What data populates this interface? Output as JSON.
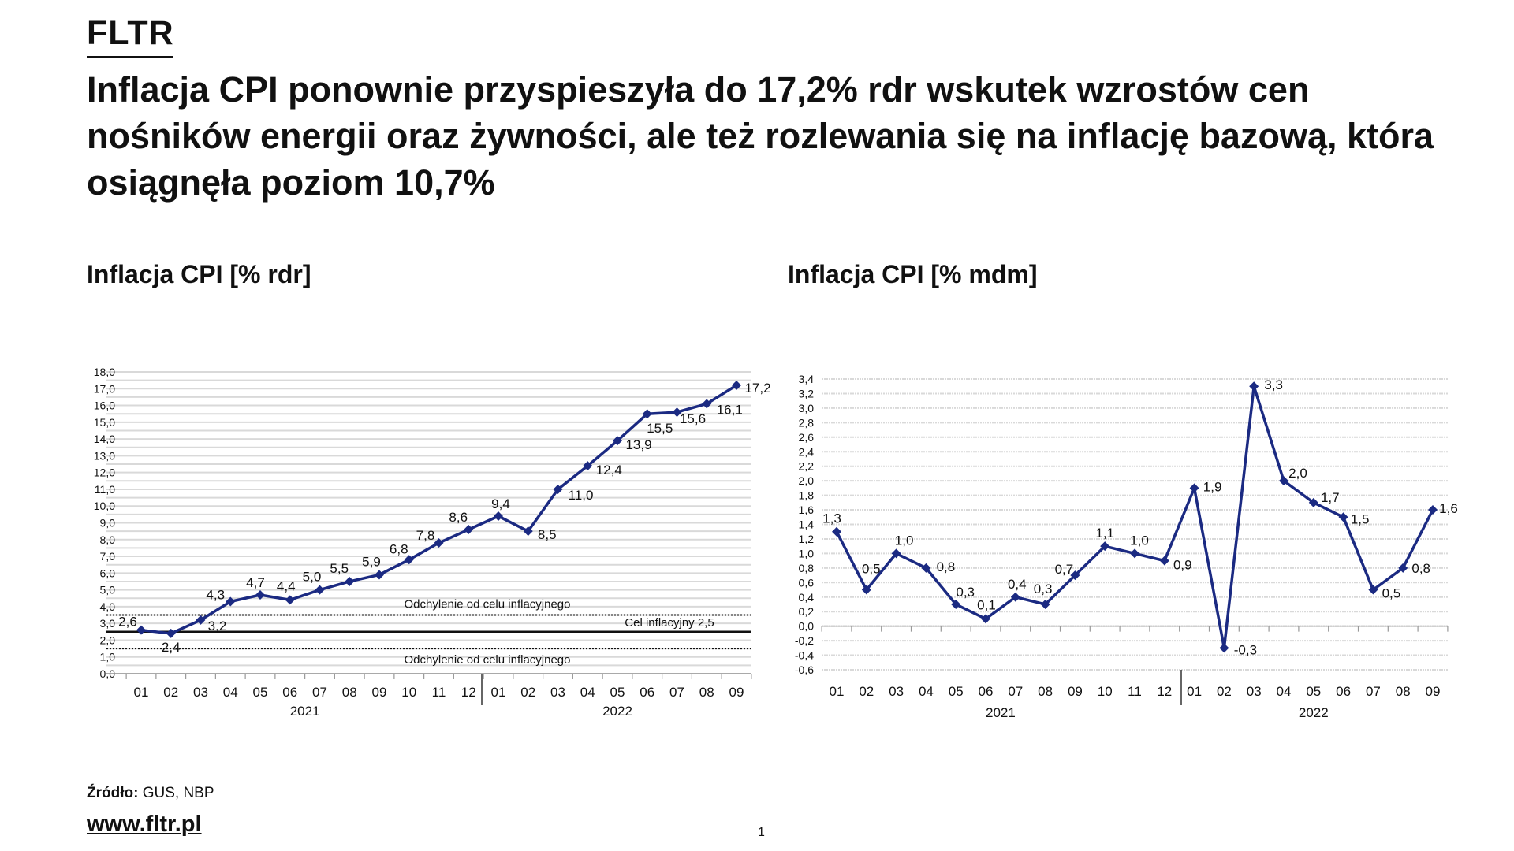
{
  "brand": "FLTR",
  "headline": "Inflacja CPI ponownie przyspieszyła do 17,2% rdr wskutek wzrostów cen nośników energii oraz żywności, ale też rozlewania się na inflację bazową, która osiągnęła poziom 10,7%",
  "footer": {
    "source_label": "Źródło:",
    "source_value": " GUS, NBP",
    "url": "www.fltr.pl",
    "page": "1"
  },
  "colors": {
    "series": "#1b2a82",
    "grid": "#d9d9d9",
    "text": "#111111"
  },
  "chart_data": [
    {
      "type": "line",
      "title": "Inflacja CPI [% rdr]",
      "categories": [
        "01",
        "02",
        "03",
        "04",
        "05",
        "06",
        "07",
        "08",
        "09",
        "10",
        "11",
        "12",
        "01",
        "02",
        "03",
        "04",
        "05",
        "06",
        "07",
        "08",
        "09"
      ],
      "year_groups": [
        {
          "label": "2021",
          "count": 12
        },
        {
          "label": "2022",
          "count": 9
        }
      ],
      "values": [
        2.6,
        2.4,
        3.2,
        4.3,
        4.7,
        4.4,
        5.0,
        5.5,
        5.9,
        6.8,
        7.8,
        8.6,
        9.4,
        8.5,
        11.0,
        12.4,
        13.9,
        15.5,
        15.6,
        16.1,
        17.2
      ],
      "data_labels": [
        "2,6",
        "2,4",
        "3,2",
        "4,3",
        "4,7",
        "4,4",
        "5,0",
        "5,5",
        "5,9",
        "6,8",
        "7,8",
        "8,6",
        "9,4",
        "8,5",
        "11,0",
        "12,4",
        "13,9",
        "15,5",
        "15,6",
        "16,1",
        "17,2"
      ],
      "ylim": [
        0,
        18
      ],
      "yticks": [
        "0,0",
        "1,0",
        "2,0",
        "3,0",
        "4,0",
        "5,0",
        "6,0",
        "7,0",
        "8,0",
        "9,0",
        "10,0",
        "11,0",
        "12,0",
        "13,0",
        "14,0",
        "15,0",
        "16,0",
        "17,0",
        "18,0"
      ],
      "marker": "diamond",
      "grid": true,
      "reference_lines": [
        {
          "value": 3.5,
          "style": "dotted",
          "label": "Odchylenie od celu inflacyjnego"
        },
        {
          "value": 2.5,
          "style": "solid",
          "label": "Cel inflacyjny 2,5"
        },
        {
          "value": 1.5,
          "style": "dotted",
          "label": "Odchylenie od celu inflacyjnego"
        }
      ]
    },
    {
      "type": "line",
      "title": "Inflacja CPI [% mdm]",
      "categories": [
        "01",
        "02",
        "03",
        "04",
        "05",
        "06",
        "07",
        "08",
        "09",
        "10",
        "11",
        "12",
        "01",
        "02",
        "03",
        "04",
        "05",
        "06",
        "07",
        "08",
        "09"
      ],
      "year_groups": [
        {
          "label": "2021",
          "count": 12
        },
        {
          "label": "2022",
          "count": 9
        }
      ],
      "values": [
        1.3,
        0.5,
        1.0,
        0.8,
        0.3,
        0.1,
        0.4,
        0.3,
        0.7,
        1.1,
        1.0,
        0.9,
        1.9,
        -0.3,
        3.3,
        2.0,
        1.7,
        1.5,
        0.5,
        0.8,
        1.6
      ],
      "data_labels": [
        "1,3",
        "0,5",
        "1,0",
        "0,8",
        "0,3",
        "0,1",
        "0,4",
        "0,3",
        "0,7",
        "1,1",
        "1,0",
        "0,9",
        "1,9",
        "-0,3",
        "3,3",
        "2,0",
        "1,7",
        "1,5",
        "0,5",
        "0,8",
        "1,6"
      ],
      "ylim": [
        -0.6,
        3.4
      ],
      "yticks": [
        "-0,6",
        "-0,4",
        "-0,2",
        "0,0",
        "0,2",
        "0,4",
        "0,6",
        "0,8",
        "1,0",
        "1,2",
        "1,4",
        "1,6",
        "1,8",
        "2,0",
        "2,2",
        "2,4",
        "2,6",
        "2,8",
        "3,0",
        "3,2",
        "3,4"
      ],
      "marker": "diamond",
      "grid": true
    }
  ]
}
